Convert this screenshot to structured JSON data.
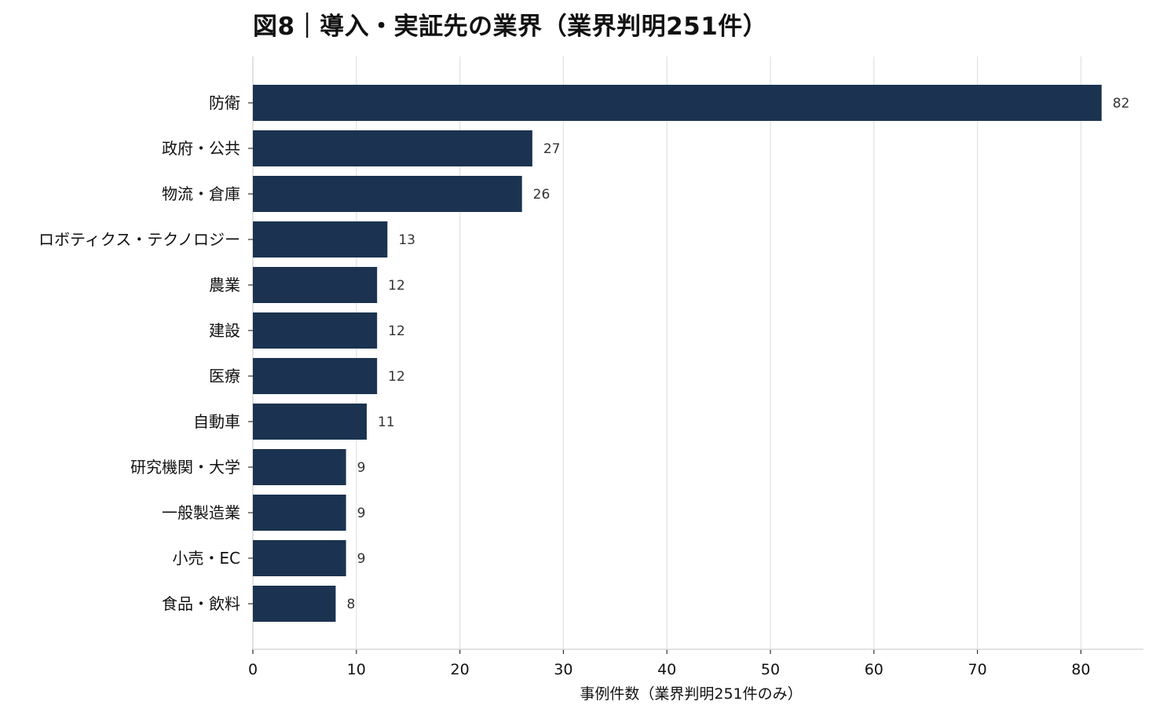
{
  "chart_data": {
    "type": "bar",
    "orientation": "horizontal",
    "title": "図8｜導入・実証先の業界（業界判明251件）",
    "xlabel": "事例件数（業界判明251件のみ）",
    "ylabel": "",
    "categories": [
      "防衛",
      "政府・公共",
      "物流・倉庫",
      "ロボティクス・テクノロジー",
      "農業",
      "建設",
      "医療",
      "自動車",
      "研究機関・大学",
      "一般製造業",
      "小売・EC",
      "食品・飲料"
    ],
    "values": [
      82,
      27,
      26,
      13,
      12,
      12,
      12,
      11,
      9,
      9,
      9,
      8
    ],
    "xlim": [
      0,
      86
    ],
    "xticks": [
      0,
      10,
      20,
      30,
      40,
      50,
      60,
      70,
      80
    ],
    "grid": "vertical",
    "legend": "none",
    "bar_color": "#1b3350",
    "grid_color": "#e3e3e3"
  }
}
